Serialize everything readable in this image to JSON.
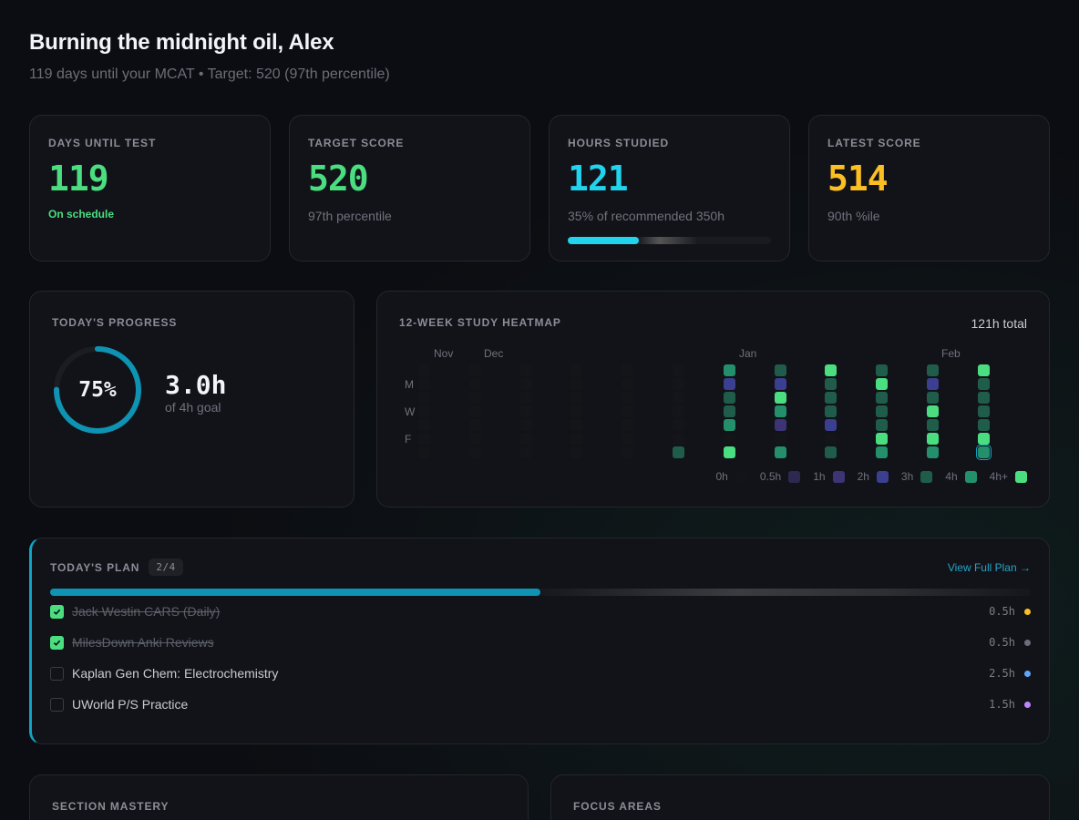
{
  "header": {
    "greeting": "Burning the midnight oil, Alex",
    "subtitle": "119 days until your MCAT • Target: 520 (97th percentile)"
  },
  "stats": [
    {
      "label": "DAYS UNTIL TEST",
      "value": "119",
      "sub": "On schedule",
      "color": "#4ade80"
    },
    {
      "label": "TARGET SCORE",
      "value": "520",
      "sub": "97th percentile",
      "color": "#4ade80"
    },
    {
      "label": "HOURS STUDIED",
      "value": "121",
      "sub": "35% of recommended 350h",
      "color": "#22d3ee",
      "progress": 0.35
    },
    {
      "label": "LATEST SCORE",
      "value": "514",
      "sub": "90th %ile",
      "color": "#fbbf24"
    }
  ],
  "today": {
    "label": "TODAY'S PROGRESS",
    "percent_text": "75%",
    "percent": 0.75,
    "hours": "3.0h",
    "goal": "of 4h goal"
  },
  "heatmap": {
    "title": "12-WEEK STUDY HEATMAP",
    "total": "121h total",
    "months": [
      "Nov",
      "Dec",
      "Jan",
      "Feb"
    ],
    "day_labels": [
      "M",
      "W",
      "F"
    ],
    "legend": [
      {
        "label": "0h",
        "color": "#131419"
      },
      {
        "label": "0.5h",
        "color": "#2e2850"
      },
      {
        "label": "1h",
        "color": "#3d3475"
      },
      {
        "label": "2h",
        "color": "#3a3f8f"
      },
      {
        "label": "3h",
        "color": "#1f5d4a"
      },
      {
        "label": "4h",
        "color": "#23906b"
      },
      {
        "label": "4h+",
        "color": "#4ade80"
      }
    ],
    "weeks": [
      [
        0,
        0,
        0,
        0,
        0,
        0,
        0
      ],
      [
        0,
        0,
        0,
        0,
        0,
        0,
        0
      ],
      [
        0,
        0,
        0,
        0,
        0,
        0,
        0
      ],
      [
        0,
        0,
        0,
        0,
        0,
        0,
        0
      ],
      [
        0,
        0,
        0,
        0,
        0,
        0,
        0
      ],
      [
        0,
        0,
        0,
        0,
        0,
        0,
        4
      ],
      [
        5,
        3,
        4,
        4,
        5,
        0,
        6
      ],
      [
        4,
        3,
        6,
        5,
        2,
        0,
        5
      ],
      [
        6,
        4,
        4,
        4,
        3,
        0,
        4
      ],
      [
        4,
        6,
        4,
        4,
        4,
        6,
        5
      ],
      [
        4,
        3,
        4,
        6,
        4,
        6,
        5
      ],
      [
        6,
        4,
        4,
        4,
        4,
        6,
        5
      ]
    ],
    "today_week": 11,
    "today_day": 6
  },
  "plan": {
    "label": "TODAY'S PLAN",
    "badge": "2/4",
    "link": "View Full Plan →",
    "progress": 0.5,
    "tasks": [
      {
        "name": "Jack Westin CARS (Daily)",
        "hours": "0.5h",
        "done": true,
        "color": "#fbbf24"
      },
      {
        "name": "MilesDown Anki Reviews",
        "hours": "0.5h",
        "done": true,
        "color": "#6b6e78"
      },
      {
        "name": "Kaplan Gen Chem: Electrochemistry",
        "hours": "2.5h",
        "done": false,
        "color": "#60a5fa"
      },
      {
        "name": "UWorld P/S Practice",
        "hours": "1.5h",
        "done": false,
        "color": "#c084fc"
      }
    ]
  },
  "section_mastery": {
    "label": "SECTION MASTERY"
  },
  "focus_areas": {
    "label": "FOCUS AREAS"
  }
}
